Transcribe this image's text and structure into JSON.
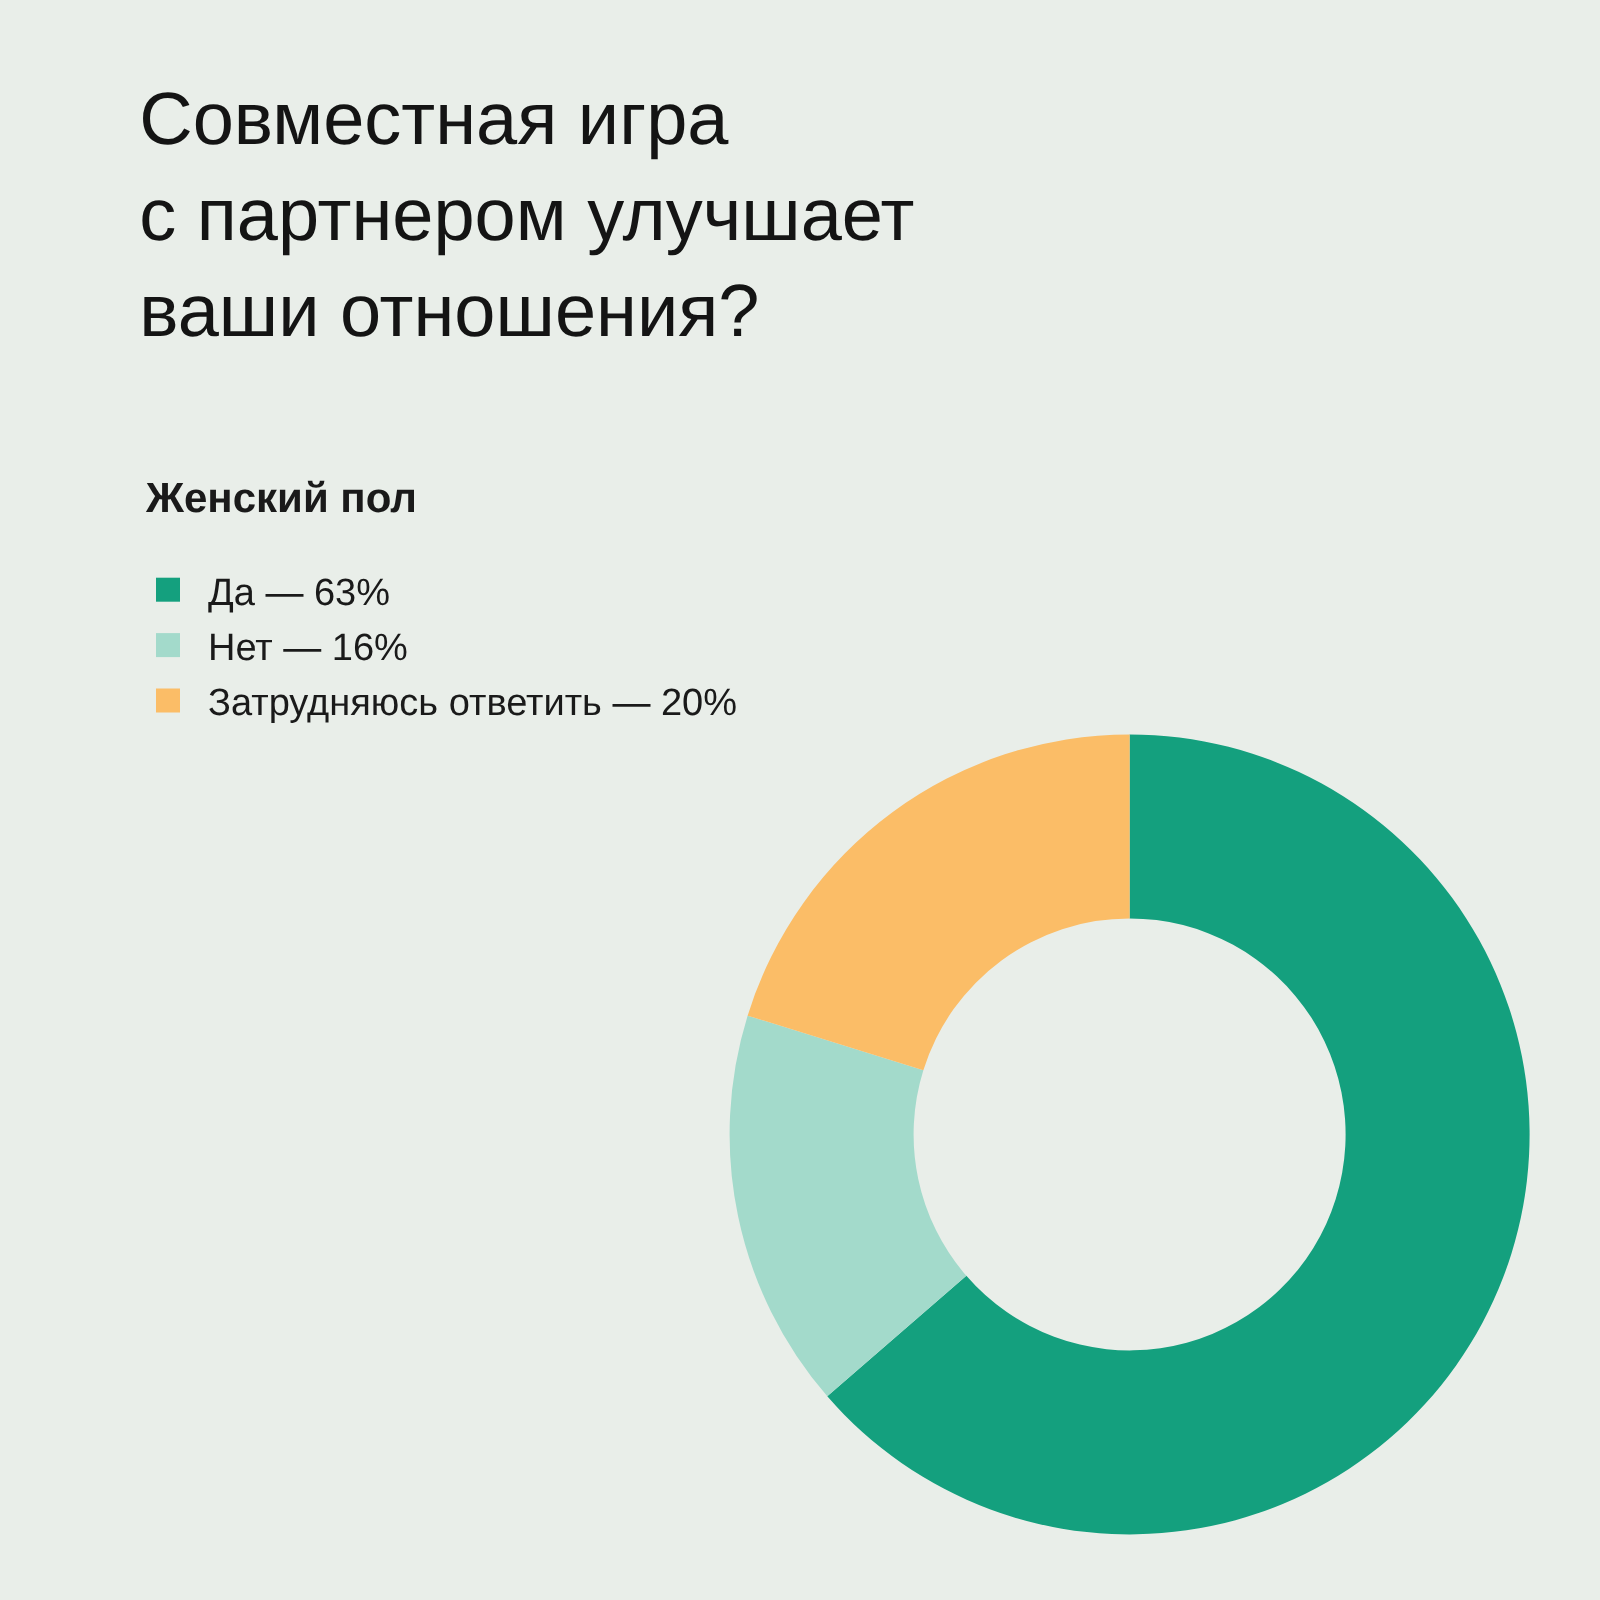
{
  "chart_data": {
    "type": "donut",
    "title": "Совместная игра\nс партнером улучшает\nваши отношения?",
    "subtitle": "Женский пол",
    "categories": [
      "Да — 63%",
      "Нет — 16%",
      "Затрудняюсь ответить — 20%"
    ],
    "values": [
      63,
      16,
      20
    ],
    "colors": [
      "#14a07e",
      "#a3dacb",
      "#fbbd67"
    ],
    "legend": "top left"
  }
}
